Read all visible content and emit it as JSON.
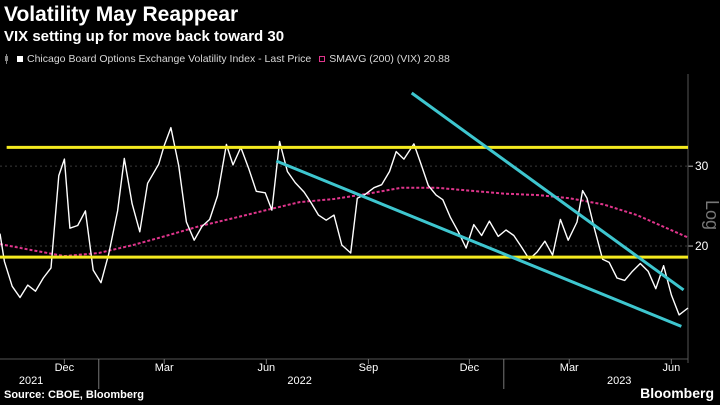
{
  "title": "Volatility May Reappear",
  "subtitle": "VIX setting up for move back toward 30",
  "legend": {
    "prefix_icon": "candle-icon",
    "vix_label": "Chicago Board Options Exchange Volatility Index - Last Price",
    "sma_label": "SMAVG (200) (VIX) 20.88"
  },
  "source": "Source: CBOE, Bloomberg",
  "brand": "Bloomberg",
  "axis_side_label": "Log",
  "colors": {
    "background": "#000000",
    "vix": "#ffffff",
    "sma": "#e0358c",
    "support": "#f4ea1f",
    "trend": "#3ec6cf",
    "grid": "#3a3a3a"
  },
  "chart_data": {
    "type": "line",
    "title": "Volatility May Reappear",
    "subtitle": "VIX setting up for move back toward 30",
    "yscale": "log",
    "ylim": [
      11.5,
      46
    ],
    "xlim": [
      "2021-10-04",
      "2023-06-16"
    ],
    "y_ticks": [
      20,
      30
    ],
    "x_tick_labels": [
      {
        "date": "2021-12-01",
        "label": "Dec"
      },
      {
        "date": "2022-03-01",
        "label": "Mar"
      },
      {
        "date": "2022-06-01",
        "label": "Jun"
      },
      {
        "date": "2022-09-01",
        "label": "Sep"
      },
      {
        "date": "2022-12-01",
        "label": "Dec"
      },
      {
        "date": "2023-03-01",
        "label": "Mar"
      },
      {
        "date": "2023-06-01",
        "label": "Jun"
      }
    ],
    "year_labels": [
      {
        "date": "2021-11-01",
        "label": "2021"
      },
      {
        "date": "2022-07-01",
        "label": "2022"
      },
      {
        "date": "2023-04-15",
        "label": "2023"
      }
    ],
    "series": [
      {
        "name": "Chicago Board Options Exchange Volatility Index - Last Price",
        "x": [
          "2021-10-04",
          "2021-10-08",
          "2021-10-15",
          "2021-10-22",
          "2021-10-29",
          "2021-11-05",
          "2021-11-12",
          "2021-11-19",
          "2021-11-26",
          "2021-12-01",
          "2021-12-06",
          "2021-12-13",
          "2021-12-20",
          "2021-12-27",
          "2022-01-03",
          "2022-01-10",
          "2022-01-18",
          "2022-01-24",
          "2022-01-31",
          "2022-02-07",
          "2022-02-14",
          "2022-02-24",
          "2022-03-01",
          "2022-03-07",
          "2022-03-14",
          "2022-03-21",
          "2022-03-28",
          "2022-04-04",
          "2022-04-11",
          "2022-04-18",
          "2022-04-26",
          "2022-05-02",
          "2022-05-09",
          "2022-05-16",
          "2022-05-23",
          "2022-05-31",
          "2022-06-06",
          "2022-06-13",
          "2022-06-20",
          "2022-06-27",
          "2022-07-05",
          "2022-07-11",
          "2022-07-18",
          "2022-07-25",
          "2022-08-01",
          "2022-08-08",
          "2022-08-16",
          "2022-08-22",
          "2022-08-29",
          "2022-09-06",
          "2022-09-13",
          "2022-09-20",
          "2022-09-26",
          "2022-10-03",
          "2022-10-12",
          "2022-10-18",
          "2022-10-25",
          "2022-11-01",
          "2022-11-07",
          "2022-11-14",
          "2022-11-21",
          "2022-11-28",
          "2022-12-05",
          "2022-12-12",
          "2022-12-19",
          "2022-12-27",
          "2023-01-03",
          "2023-01-10",
          "2023-01-17",
          "2023-01-24",
          "2023-01-31",
          "2023-02-07",
          "2023-02-14",
          "2023-02-21",
          "2023-02-28",
          "2023-03-08",
          "2023-03-13",
          "2023-03-17",
          "2023-03-24",
          "2023-03-31",
          "2023-04-06",
          "2023-04-13",
          "2023-04-20",
          "2023-04-27",
          "2023-05-04",
          "2023-05-11",
          "2023-05-18",
          "2023-05-25",
          "2023-06-01",
          "2023-06-08",
          "2023-06-16"
        ],
        "values": [
          21.3,
          18.5,
          16.3,
          15.4,
          16.4,
          15.9,
          17.0,
          17.9,
          28.6,
          31.1,
          21.9,
          22.2,
          23.9,
          17.7,
          16.6,
          19.2,
          23.9,
          31.2,
          24.8,
          21.5,
          27.5,
          30.3,
          33.3,
          36.5,
          30.1,
          22.6,
          20.6,
          22.1,
          22.9,
          25.8,
          33.5,
          30.2,
          33.0,
          29.7,
          26.4,
          26.2,
          24.0,
          34.0,
          29.2,
          27.6,
          26.3,
          25.0,
          23.4,
          22.8,
          23.4,
          20.1,
          19.3,
          25.5,
          26.0,
          26.9,
          27.3,
          29.2,
          32.3,
          31.1,
          33.6,
          30.5,
          27.2,
          25.9,
          25.3,
          23.1,
          21.5,
          19.8,
          22.3,
          21.1,
          22.7,
          21.0,
          21.7,
          21.1,
          19.9,
          18.7,
          19.4,
          20.5,
          19.1,
          22.9,
          20.6,
          22.6,
          26.5,
          25.5,
          21.7,
          18.7,
          18.4,
          17.0,
          16.8,
          17.6,
          18.3,
          17.6,
          16.1,
          18.1,
          15.6,
          14.1,
          14.6
        ]
      },
      {
        "name": "SMAVG (200) (VIX) 20.88",
        "x": [
          "2021-10-04",
          "2021-11-01",
          "2021-12-01",
          "2022-01-01",
          "2022-02-01",
          "2022-03-01",
          "2022-04-01",
          "2022-05-01",
          "2022-06-01",
          "2022-07-01",
          "2022-08-01",
          "2022-09-01",
          "2022-10-01",
          "2022-11-01",
          "2022-12-01",
          "2023-01-01",
          "2023-02-01",
          "2023-03-01",
          "2023-04-01",
          "2023-05-01",
          "2023-06-16"
        ],
        "values": [
          20.2,
          19.6,
          19.0,
          19.3,
          20.1,
          21.0,
          22.1,
          23.0,
          24.0,
          25.0,
          25.4,
          26.1,
          26.9,
          26.9,
          26.5,
          26.1,
          25.9,
          25.5,
          24.7,
          23.4,
          20.88
        ]
      }
    ],
    "annotations": [
      {
        "type": "hline",
        "y": 33,
        "color": "#f4ea1f",
        "x_start": "2021-10-10",
        "x_end": "2023-06-16"
      },
      {
        "type": "hline",
        "y": 18.9,
        "color": "#f4ea1f",
        "x_start": "2021-10-04",
        "x_end": "2023-06-16"
      },
      {
        "type": "trendline",
        "from": {
          "date": "2022-06-10",
          "y": 30.8
        },
        "to": {
          "date": "2023-06-10",
          "y": 13.3
        },
        "color": "#3ec6cf"
      },
      {
        "type": "trendline",
        "from": {
          "date": "2022-10-10",
          "y": 43.5
        },
        "to": {
          "date": "2023-06-12",
          "y": 16.0
        },
        "color": "#3ec6cf"
      }
    ]
  }
}
